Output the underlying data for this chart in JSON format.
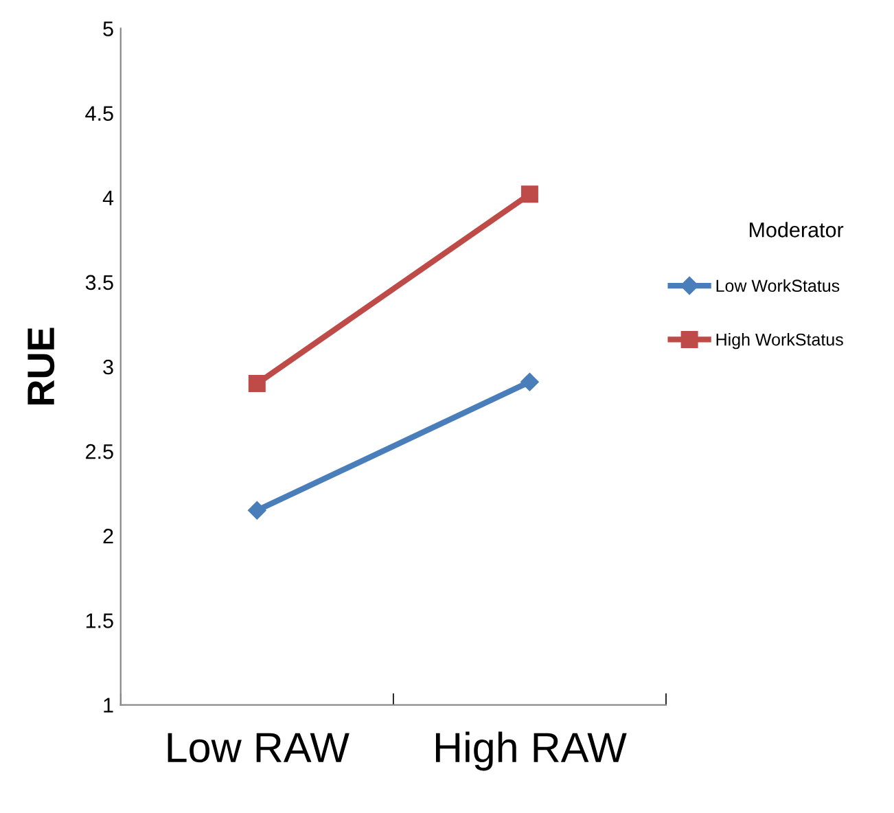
{
  "chart_data": {
    "type": "line",
    "ylabel": "RUE",
    "legend_title": "Moderator",
    "categories": [
      "Low RAW",
      "High RAW"
    ],
    "series": [
      {
        "name": "Low WorkStatus",
        "color": "#4a7ebb",
        "values": [
          2.15,
          2.91
        ],
        "marker": "diamond"
      },
      {
        "name": "High WorkStatus",
        "color": "#be4b48",
        "values": [
          2.9,
          4.02
        ],
        "marker": "square"
      }
    ],
    "ylim": [
      1,
      5
    ],
    "yticks": [
      1,
      1.5,
      2,
      2.5,
      3,
      3.5,
      4,
      4.5,
      5
    ],
    "grid": false,
    "legend": "right"
  }
}
